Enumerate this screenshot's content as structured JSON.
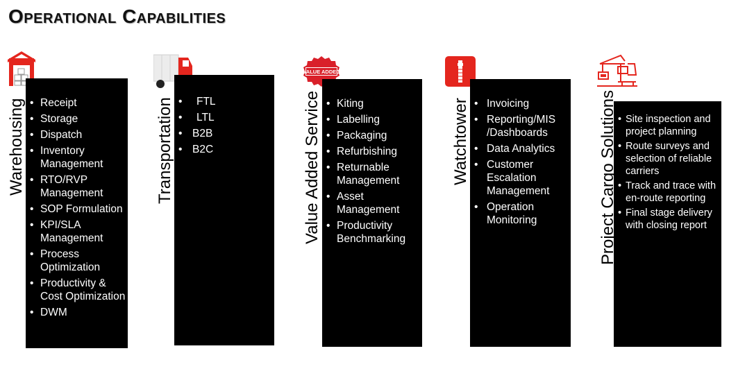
{
  "title": "Operational Capabilities",
  "colors": {
    "accent": "#e4261e",
    "panel": "#000000"
  },
  "columns": [
    {
      "id": "warehousing",
      "label": "Warehousing",
      "icon": "warehouse-icon",
      "items": [
        "Receipt",
        "Storage",
        "Dispatch",
        "Inventory Management",
        "RTO/RVP Management",
        "SOP Formulation",
        "KPI/SLA Management",
        "Process Optimization",
        "Productivity & Cost Optimization",
        "DWM"
      ]
    },
    {
      "id": "transportation",
      "label": "Transportation",
      "icon": "truck-icon",
      "items": [
        "FTL",
        "LTL",
        "B2B",
        "B2C"
      ]
    },
    {
      "id": "value-added-service",
      "label": "Value Added Service",
      "icon": "value-added-badge-icon",
      "badge_text": "VALUE ADDED",
      "items": [
        "Kiting",
        "Labelling",
        "Packaging",
        "Refurbishing",
        "Returnable Management",
        "Asset Management",
        "Productivity Benchmarking"
      ]
    },
    {
      "id": "watchtower",
      "label": "Watchtower",
      "icon": "watchtower-icon",
      "items": [
        "Invoicing",
        "Reporting/MIS /Dashboards",
        "Data Analytics",
        "Customer Escalation Management",
        "Operation Monitoring"
      ]
    },
    {
      "id": "project-cargo",
      "label": "Project Cargo Solutions",
      "icon": "crane-icon",
      "items": [
        "Site inspection and project planning",
        "Route surveys and selection of reliable carriers",
        "Track and trace with en-route reporting",
        "Final stage delivery with closing report"
      ]
    }
  ]
}
